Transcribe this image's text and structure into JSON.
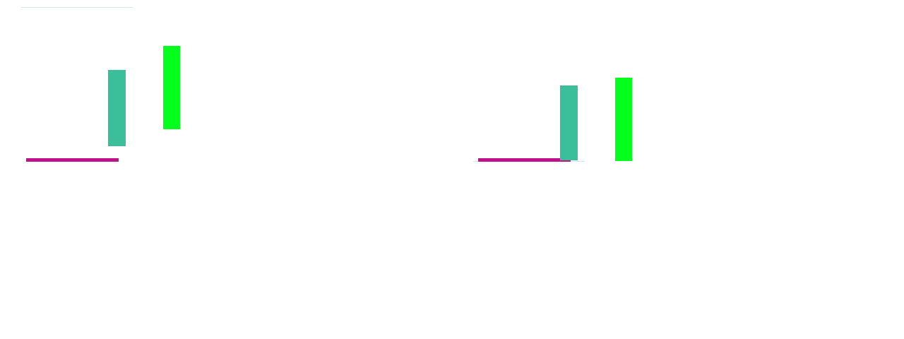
{
  "colors": {
    "thin_line": "#cfe6f5",
    "horizontal_bar": "#c0108c",
    "teal_bar": "#3bbf9a",
    "green_bar": "#05ff1c"
  },
  "panels": [
    {
      "id": "left"
    },
    {
      "id": "right"
    }
  ]
}
